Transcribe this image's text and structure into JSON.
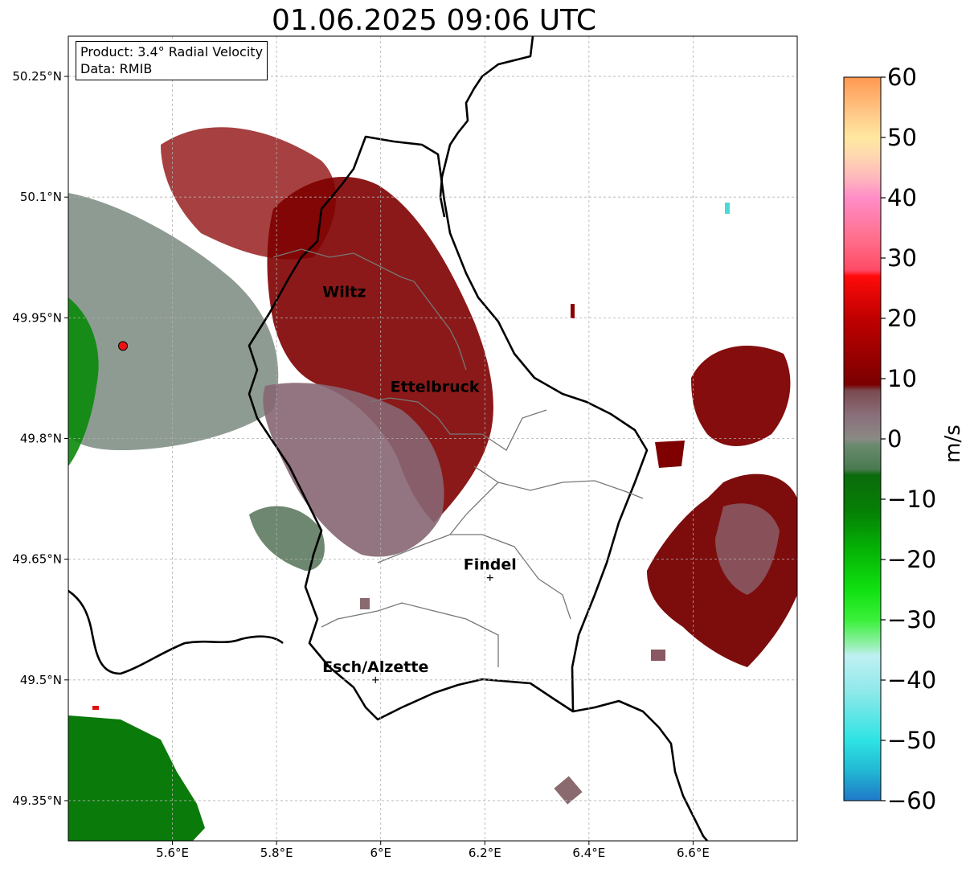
{
  "title": "01.06.2025 09:06 UTC",
  "info_box": {
    "product": "Product: 3.4° Radial Velocity",
    "source": "Data: RMIB"
  },
  "map": {
    "lon_range": [
      5.4,
      6.8
    ],
    "lat_range": [
      49.3,
      50.3
    ],
    "x_ticks": [
      "5.6°E",
      "5.8°E",
      "6°E",
      "6.2°E",
      "6.4°E",
      "6.6°E"
    ],
    "x_tick_values": [
      5.6,
      5.8,
      6.0,
      6.2,
      6.4,
      6.6
    ],
    "y_ticks": [
      "50.25°N",
      "50.1°N",
      "49.95°N",
      "49.8°N",
      "49.65°N",
      "49.5°N",
      "49.35°N"
    ],
    "y_tick_values": [
      50.25,
      50.1,
      49.95,
      49.8,
      49.65,
      49.5,
      49.35
    ],
    "gridlines": true,
    "radar_site": {
      "lon": 5.505,
      "lat": 49.915,
      "color": "#ee1111"
    },
    "places": [
      {
        "name": "Wiltz",
        "lon": 5.93,
        "lat": 49.966,
        "marker": false
      },
      {
        "name": "Ettelbruck",
        "lon": 6.104,
        "lat": 49.848,
        "marker": false
      },
      {
        "name": "Findel",
        "lon": 6.21,
        "lat": 49.627,
        "marker": true
      },
      {
        "name": "Esch/Alzette",
        "lon": 5.99,
        "lat": 49.5,
        "marker": true
      }
    ]
  },
  "colorbar": {
    "label": "m/s",
    "min": -60,
    "max": 60,
    "ticks": [
      "60",
      "50",
      "40",
      "30",
      "20",
      "10",
      "0",
      "−10",
      "−20",
      "−30",
      "−40",
      "−50",
      "−60"
    ],
    "tick_values": [
      60,
      50,
      40,
      30,
      20,
      10,
      0,
      -10,
      -20,
      -30,
      -40,
      -50,
      -60
    ],
    "stops": [
      {
        "v": -60,
        "c": "#1f78c8"
      },
      {
        "v": -55,
        "c": "#22b8d4"
      },
      {
        "v": -50,
        "c": "#2ee3e3"
      },
      {
        "v": -42,
        "c": "#8ee8ea"
      },
      {
        "v": -36,
        "c": "#bff0f2"
      },
      {
        "v": -34,
        "c": "#90f0a8"
      },
      {
        "v": -30,
        "c": "#3af03a"
      },
      {
        "v": -25,
        "c": "#10e010"
      },
      {
        "v": -18,
        "c": "#05b005"
      },
      {
        "v": -12,
        "c": "#058005"
      },
      {
        "v": -6,
        "c": "#0b6b0b"
      },
      {
        "v": -5,
        "c": "#4a7a50"
      },
      {
        "v": -1,
        "c": "#6a8a6e"
      },
      {
        "v": 0,
        "c": "#8a8a84"
      },
      {
        "v": 4,
        "c": "#8a6e7a"
      },
      {
        "v": 8,
        "c": "#7a4a50"
      },
      {
        "v": 9,
        "c": "#7a0000"
      },
      {
        "v": 14,
        "c": "#9a0000"
      },
      {
        "v": 20,
        "c": "#c00000"
      },
      {
        "v": 27,
        "c": "#ff0a0a"
      },
      {
        "v": 28,
        "c": "#ff4a66"
      },
      {
        "v": 33,
        "c": "#ff6e8a"
      },
      {
        "v": 40,
        "c": "#ff8cc8"
      },
      {
        "v": 43,
        "c": "#ffb4be"
      },
      {
        "v": 47,
        "c": "#ffd8b0"
      },
      {
        "v": 50,
        "c": "#ffe8a0"
      },
      {
        "v": 54,
        "c": "#ffc888"
      },
      {
        "v": 60,
        "c": "#ff9850"
      }
    ]
  }
}
